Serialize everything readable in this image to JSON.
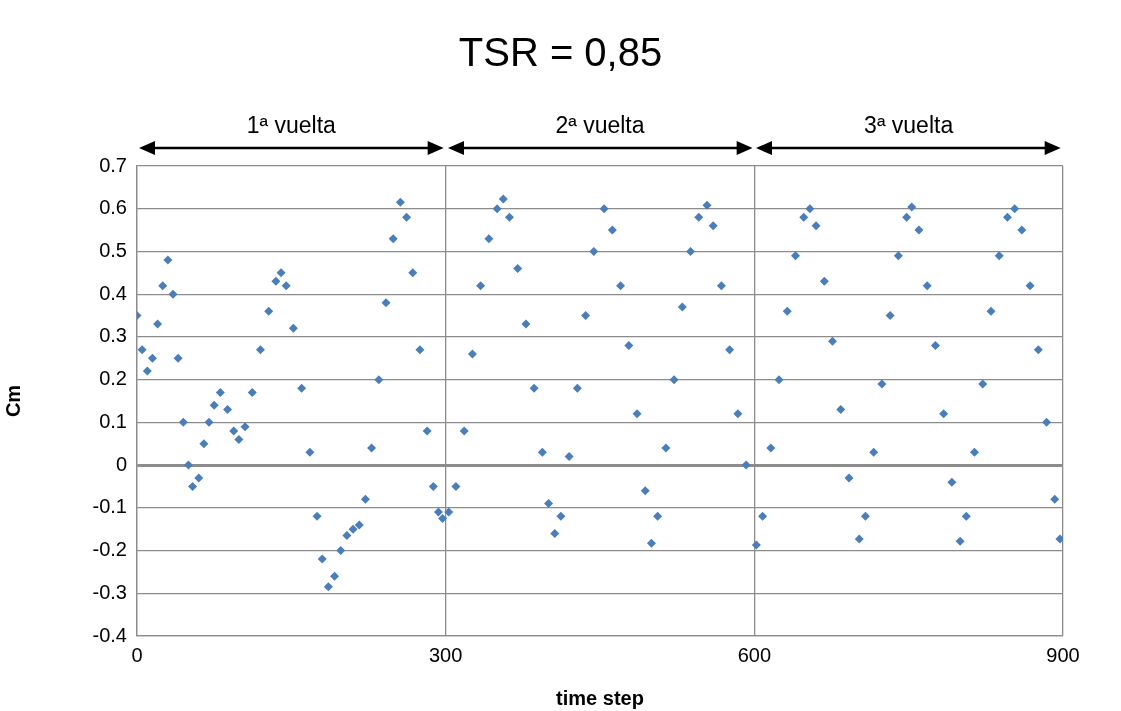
{
  "chart_data": {
    "type": "scatter",
    "title": "TSR = 0,85",
    "xlabel": "time step",
    "ylabel": "Cm",
    "annotations": [
      "1ª vuelta",
      "2ª vuelta",
      "3ª vuelta"
    ],
    "xlim": [
      0,
      900
    ],
    "xticks": [
      0,
      300,
      600,
      900
    ],
    "ylim": [
      -0.4,
      0.7
    ],
    "yticks": [
      -0.4,
      -0.3,
      -0.2,
      -0.1,
      0,
      0.1,
      0.2,
      0.3,
      0.4,
      0.5,
      0.6,
      0.7
    ],
    "grid": true,
    "marker": "diamond",
    "series": [
      {
        "color": "#4a7ebb",
        "x": [
          0,
          5,
          10,
          15,
          20,
          25,
          30,
          35,
          40,
          45,
          50,
          54,
          60,
          65,
          70,
          75,
          81,
          88,
          94,
          99,
          105,
          112,
          120,
          128,
          135,
          140,
          145,
          152,
          160,
          168,
          175,
          180,
          186,
          192,
          198,
          204,
          210,
          216,
          222,
          228,
          235,
          242,
          249,
          256,
          262,
          268,
          275,
          282,
          288,
          293,
          297,
          303,
          310,
          318,
          326,
          334,
          342,
          350,
          356,
          362,
          370,
          378,
          386,
          394,
          400,
          406,
          412,
          420,
          428,
          436,
          444,
          454,
          462,
          470,
          478,
          486,
          494,
          500,
          506,
          514,
          522,
          530,
          538,
          546,
          554,
          560,
          568,
          576,
          584,
          592,
          602,
          608,
          616,
          624,
          632,
          640,
          648,
          654,
          660,
          668,
          676,
          684,
          692,
          702,
          708,
          716,
          724,
          732,
          740,
          748,
          753,
          760,
          768,
          776,
          784,
          792,
          800,
          806,
          814,
          822,
          830,
          838,
          846,
          853,
          860,
          868,
          876,
          884,
          892,
          897
        ],
        "values": [
          0.35,
          0.27,
          0.22,
          0.25,
          0.33,
          0.42,
          0.48,
          0.4,
          0.25,
          0.1,
          0.0,
          -0.05,
          -0.03,
          0.05,
          0.1,
          0.14,
          0.17,
          0.13,
          0.08,
          0.06,
          0.09,
          0.17,
          0.27,
          0.36,
          0.43,
          0.45,
          0.42,
          0.32,
          0.18,
          0.03,
          -0.12,
          -0.22,
          -0.285,
          -0.26,
          -0.2,
          -0.165,
          -0.15,
          -0.14,
          -0.08,
          0.04,
          0.2,
          0.38,
          0.53,
          0.615,
          0.58,
          0.45,
          0.27,
          0.08,
          -0.05,
          -0.11,
          -0.125,
          -0.11,
          -0.05,
          0.08,
          0.26,
          0.42,
          0.53,
          0.6,
          0.623,
          0.58,
          0.46,
          0.33,
          0.18,
          0.03,
          -0.09,
          -0.16,
          -0.12,
          0.02,
          0.18,
          0.35,
          0.5,
          0.6,
          0.55,
          0.42,
          0.28,
          0.12,
          -0.06,
          -0.183,
          -0.12,
          0.04,
          0.2,
          0.37,
          0.5,
          0.58,
          0.608,
          0.56,
          0.42,
          0.27,
          0.12,
          0.0,
          -0.187,
          -0.12,
          0.04,
          0.2,
          0.36,
          0.49,
          0.58,
          0.6,
          0.56,
          0.43,
          0.29,
          0.13,
          -0.03,
          -0.173,
          -0.12,
          0.03,
          0.19,
          0.35,
          0.49,
          0.58,
          0.604,
          0.55,
          0.42,
          0.28,
          0.12,
          -0.04,
          -0.178,
          -0.12,
          0.03,
          0.19,
          0.36,
          0.49,
          0.58,
          0.6,
          0.55,
          0.42,
          0.27,
          0.1,
          -0.08,
          -0.173
        ]
      }
    ]
  }
}
